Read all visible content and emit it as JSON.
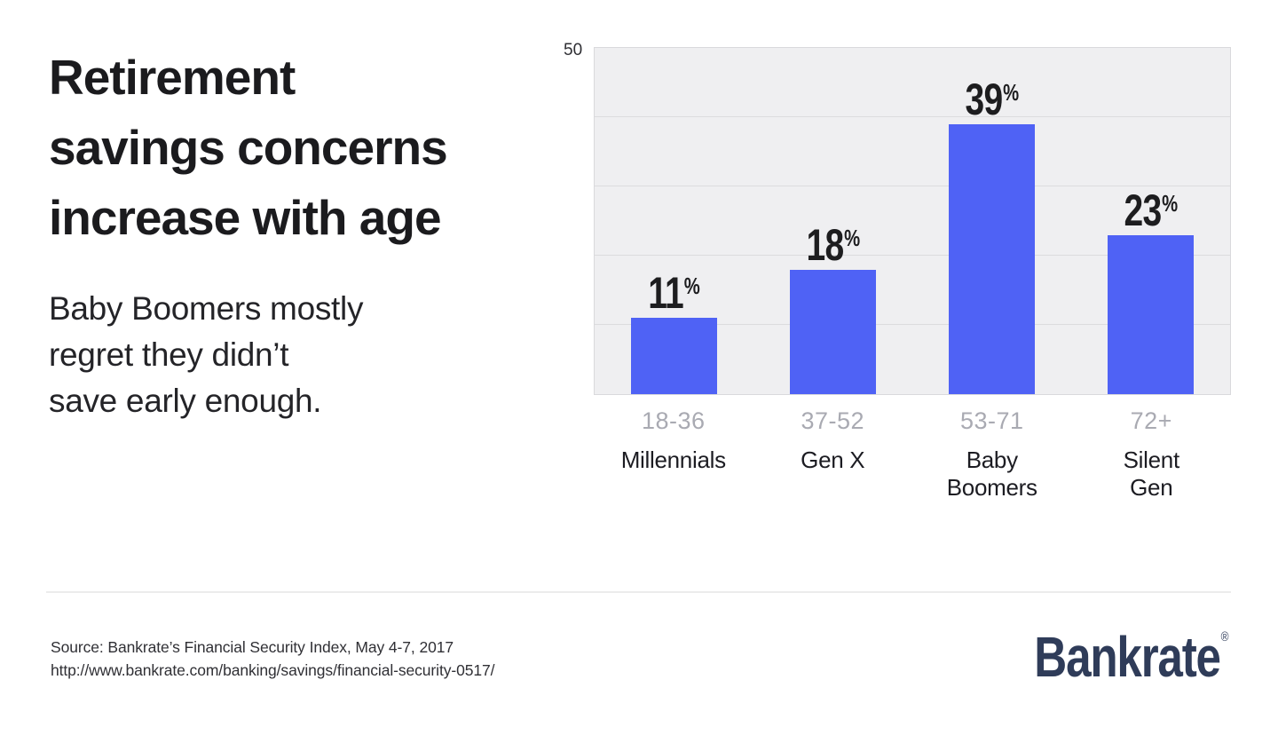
{
  "header": {
    "title_lines": [
      "Retirement",
      "savings concerns",
      "increase with age"
    ],
    "subtitle_lines": [
      "Baby Boomers mostly",
      "regret they didn’t",
      "save early enough."
    ]
  },
  "chart_data": {
    "type": "bar",
    "categories": [
      "Millennials",
      "Gen X",
      "Baby Boomers",
      "Silent Gen"
    ],
    "category_display": [
      "Millennials",
      "Gen X",
      "Baby\nBoomers",
      "Silent\nGen"
    ],
    "age_ranges": [
      "18-36",
      "37-52",
      "53-71",
      "72+"
    ],
    "values": [
      11,
      18,
      39,
      23
    ],
    "value_suffix": "%",
    "ylim": [
      0,
      50
    ],
    "ytick_top_label": "50",
    "gridline_values": [
      10,
      20,
      30,
      40
    ],
    "grid": "horizontal",
    "legend": "none",
    "bar_color": "#4f62f5",
    "plot_background": "#efeff1",
    "gridline_color": "#dcdcde",
    "age_label_color": "#a9aab2",
    "value_label_color": "#1d1d1f"
  },
  "footer": {
    "source_line1": "Source: Bankrate’s Financial Security Index, May 4-7, 2017",
    "source_line2": "http://www.bankrate.com/banking/savings/financial-security-0517/",
    "brand": "Bankrate",
    "registered_mark": "®",
    "brand_color": "#2f3c59"
  }
}
